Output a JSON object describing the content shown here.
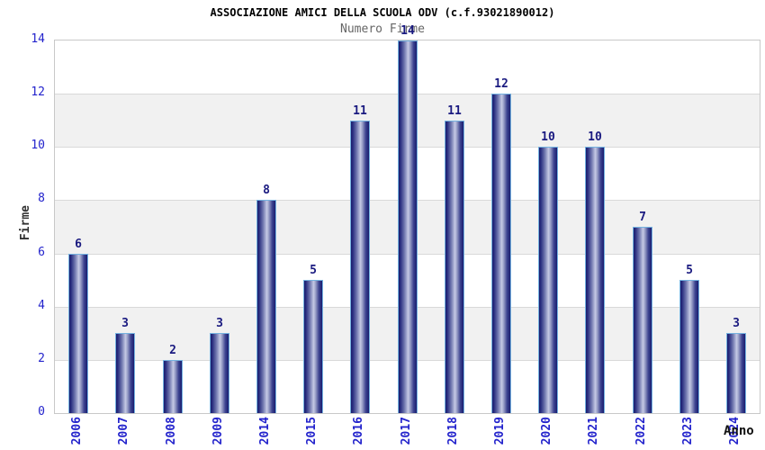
{
  "chart_data": {
    "type": "bar",
    "title": "ASSOCIAZIONE AMICI DELLA SCUOLA ODV (c.f.93021890012)",
    "subtitle": "Numero Firme",
    "xlabel": "Anno",
    "ylabel": "Firme",
    "categories": [
      "2006",
      "2007",
      "2008",
      "2009",
      "2014",
      "2015",
      "2016",
      "2017",
      "2018",
      "2019",
      "2020",
      "2021",
      "2022",
      "2023",
      "2024"
    ],
    "values": [
      6,
      3,
      2,
      3,
      8,
      5,
      11,
      14,
      11,
      12,
      10,
      10,
      7,
      5,
      3
    ],
    "ylim": [
      0,
      14
    ],
    "yticks": [
      0,
      2,
      4,
      6,
      8,
      10,
      12,
      14
    ],
    "value_labels": true,
    "legend": "none",
    "grid": "horizontal gridlines with alternating gray bands",
    "colors": {
      "bar_dark": "#191d6e",
      "bar_light": "#c6cae6",
      "bar_border": "#74b2e0",
      "tick_label": "#2323cc",
      "value_label": "#1a1a80",
      "band_gray": "#f1f1f1",
      "gridline": "#d9d9d9",
      "axis_border": "#c8c8c8",
      "title_color": "#000000",
      "subtitle_color": "#666666"
    }
  }
}
